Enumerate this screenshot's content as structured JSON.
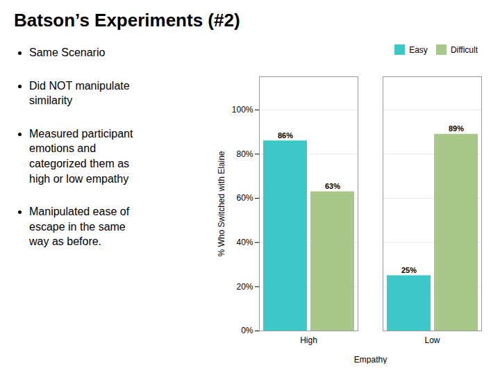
{
  "chart_data": {
    "type": "bar",
    "title": "Batson’s Experiments (#2)",
    "annotations": [
      "Same Scenario",
      "Did NOT manipulate\nsimilarity",
      "Measured participant\nemotions and\ncategorized them as\nhigh or low empathy",
      "Manipulated ease of\nescape in the same\nway as before."
    ],
    "categories": [
      "High",
      "Low"
    ],
    "series": [
      {
        "name": "Easy",
        "color": "#3cc8c8",
        "values": [
          86,
          25
        ],
        "value_labels": [
          "86%",
          "25%"
        ]
      },
      {
        "name": "Difficult",
        "color": "#a8c88a",
        "values": [
          63,
          89
        ],
        "value_labels": [
          "63%",
          "89%"
        ]
      }
    ],
    "xlabel": "Empathy",
    "ylabel": "% Who Switched with Elaine",
    "ylim": [
      0,
      115
    ],
    "yticks": [
      {
        "value": 0,
        "label": "0%"
      },
      {
        "value": 20,
        "label": "20%"
      },
      {
        "value": 40,
        "label": "40%"
      },
      {
        "value": 60,
        "label": "60%"
      },
      {
        "value": 80,
        "label": "80%"
      },
      {
        "value": 100,
        "label": "100%"
      }
    ],
    "grid": true,
    "legend": "upper right",
    "data_labels": true
  }
}
